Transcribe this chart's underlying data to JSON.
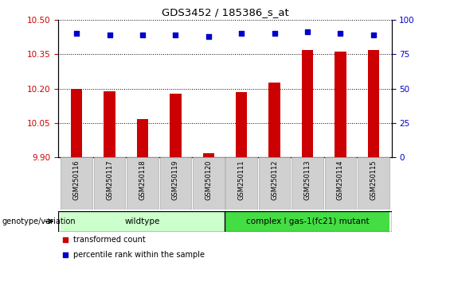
{
  "title": "GDS3452 / 185386_s_at",
  "categories": [
    "GSM250116",
    "GSM250117",
    "GSM250118",
    "GSM250119",
    "GSM250120",
    "GSM250111",
    "GSM250112",
    "GSM250113",
    "GSM250114",
    "GSM250115"
  ],
  "bar_values": [
    10.2,
    10.188,
    10.068,
    10.178,
    9.918,
    10.183,
    10.225,
    10.368,
    10.36,
    10.368
  ],
  "percentile_values": [
    90,
    89,
    89,
    89,
    88,
    90,
    90,
    91,
    90,
    89
  ],
  "ylim": [
    9.9,
    10.5
  ],
  "y_ticks": [
    9.9,
    10.05,
    10.2,
    10.35,
    10.5
  ],
  "right_ylim": [
    0,
    100
  ],
  "right_yticks": [
    0,
    25,
    50,
    75,
    100
  ],
  "bar_color": "#cc0000",
  "dot_color": "#0000cc",
  "wildtype_color": "#ccffcc",
  "mutant_color": "#44dd44",
  "xticklabel_bg": "#d0d0d0",
  "group1_label": "wildtype",
  "group1_indices": [
    0,
    1,
    2,
    3,
    4
  ],
  "group2_label": "complex I gas-1(fc21) mutant",
  "group2_indices": [
    5,
    6,
    7,
    8,
    9
  ],
  "legend_bar_label": "transformed count",
  "legend_dot_label": "percentile rank within the sample",
  "genotype_label": "genotype/variation",
  "bar_width": 0.35,
  "ytick_color": "#cc0000",
  "right_ytick_color": "#0000cc"
}
